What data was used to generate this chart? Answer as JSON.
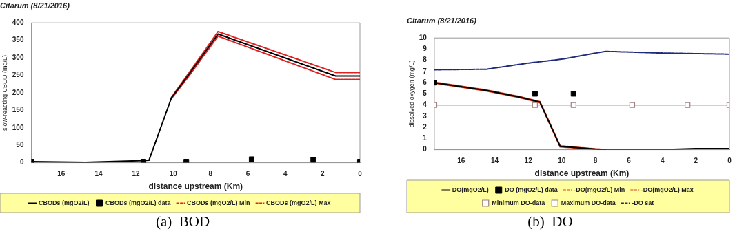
{
  "chart_data": [
    {
      "type": "line",
      "title": "Citarum (8/21/2016)",
      "xlabel": "distance upstream (Km)",
      "ylabel": "slow-reacting CBOD (mg/L)",
      "xlim": [
        17.6,
        0
      ],
      "xticks": [
        16,
        14,
        12,
        10,
        8,
        6,
        4,
        2,
        0
      ],
      "ylim": [
        0,
        400
      ],
      "yticks": [
        0,
        50,
        100,
        150,
        200,
        250,
        300,
        350,
        400
      ],
      "legend": "bottom",
      "annotations": [
        "(a)  BOD"
      ],
      "series": [
        {
          "name": "CBODs (mgO2/L)",
          "color": "#000000",
          "type": "line",
          "marker": "none",
          "line_style": "solid",
          "x": [
            17.6,
            14.7,
            11.6,
            11.3,
            10.1,
            9.2,
            7.6,
            1.3,
            0
          ],
          "values": [
            3,
            1,
            6,
            7,
            185,
            250,
            368,
            248,
            248
          ]
        },
        {
          "name": "CBODs (mgO2/L) data",
          "color": "#000000",
          "type": "scatter",
          "marker": "square",
          "x": [
            17.6,
            11.6,
            9.3,
            5.8,
            2.5,
            0
          ],
          "values": [
            3,
            3,
            3,
            10,
            8,
            3
          ]
        },
        {
          "name": "CBODs (mgO2/L) Min",
          "color": "#e02020",
          "type": "line",
          "marker": "none",
          "line_style": "dashed",
          "x": [
            10.1,
            9.2,
            7.6,
            1.3,
            0
          ],
          "values": [
            183,
            245,
            362,
            238,
            238
          ]
        },
        {
          "name": "CBODs (mgO2/L) Max",
          "color": "#e02020",
          "type": "line",
          "marker": "none",
          "line_style": "dashed",
          "x": [
            10.1,
            9.2,
            7.6,
            1.3,
            0
          ],
          "values": [
            187,
            254,
            375,
            258,
            258
          ]
        }
      ]
    },
    {
      "type": "line",
      "title": "Citarum (8/21/2016)",
      "xlabel": "distance upstream (Km)",
      "ylabel": "dissolved oxygen (mg/L)",
      "xlim": [
        17.6,
        0
      ],
      "xticks": [
        16,
        14,
        12,
        10,
        8,
        6,
        4,
        2,
        0
      ],
      "ylim": [
        0,
        10
      ],
      "yticks": [
        0,
        1,
        2,
        3,
        4,
        5,
        6,
        7,
        8,
        9,
        10
      ],
      "legend": "bottom",
      "annotations": [
        "(b)  DO"
      ],
      "ref_lines": [
        {
          "axis": "y",
          "value": 4,
          "color": "#8fa6bd"
        }
      ],
      "series": [
        {
          "name": "DO(mgO2/L)",
          "color": "#000000",
          "type": "line",
          "marker": "none",
          "line_style": "solid",
          "x": [
            17.6,
            14.5,
            12.5,
            11.3,
            10.1,
            8,
            7.4,
            4,
            2,
            0
          ],
          "values": [
            6.0,
            5.3,
            4.7,
            4.25,
            0.3,
            0.05,
            0,
            0,
            0.1,
            0.1
          ]
        },
        {
          "name": "DO (mgO2/L) data",
          "color": "#000000",
          "type": "scatter",
          "marker": "square",
          "x": [
            17.6,
            11.6,
            9.3
          ],
          "values": [
            6,
            5,
            5
          ]
        },
        {
          "name": "-DO(mgO2/L) Min",
          "color": "#d84020",
          "type": "line",
          "marker": "none",
          "line_style": "dashed",
          "x": [
            17.6,
            14.5,
            12.5,
            11.3,
            10.1,
            8,
            7.4
          ],
          "values": [
            5.95,
            5.25,
            4.65,
            4.2,
            0.25,
            0.03,
            0
          ]
        },
        {
          "name": "-DO(mgO2/L) Max",
          "color": "#d84020",
          "type": "line",
          "marker": "none",
          "line_style": "dashed",
          "x": [
            17.6,
            14.5,
            12.5,
            11.3,
            10.1,
            8,
            7.4
          ],
          "values": [
            6.05,
            5.35,
            4.75,
            4.3,
            0.35,
            0.07,
            0.02
          ]
        },
        {
          "name": "Minimum DO-data",
          "color": "#a08080",
          "type": "scatter",
          "marker": "square-open",
          "x": [
            17.6,
            11.6,
            9.3,
            5.8,
            2.5,
            0
          ],
          "values": [
            4,
            4,
            4,
            4,
            4,
            4
          ]
        },
        {
          "name": "Maximum DO-data",
          "color": "#a08080",
          "type": "scatter",
          "marker": "square-open"
        },
        {
          "name": "-DO sat",
          "color": "#1f2a7a",
          "type": "line",
          "marker": "none",
          "line_style": "dashed",
          "x": [
            17.6,
            14.5,
            12,
            10,
            7.4,
            4,
            0
          ],
          "values": [
            7.15,
            7.2,
            7.75,
            8.1,
            8.8,
            8.65,
            8.55
          ]
        }
      ]
    }
  ]
}
